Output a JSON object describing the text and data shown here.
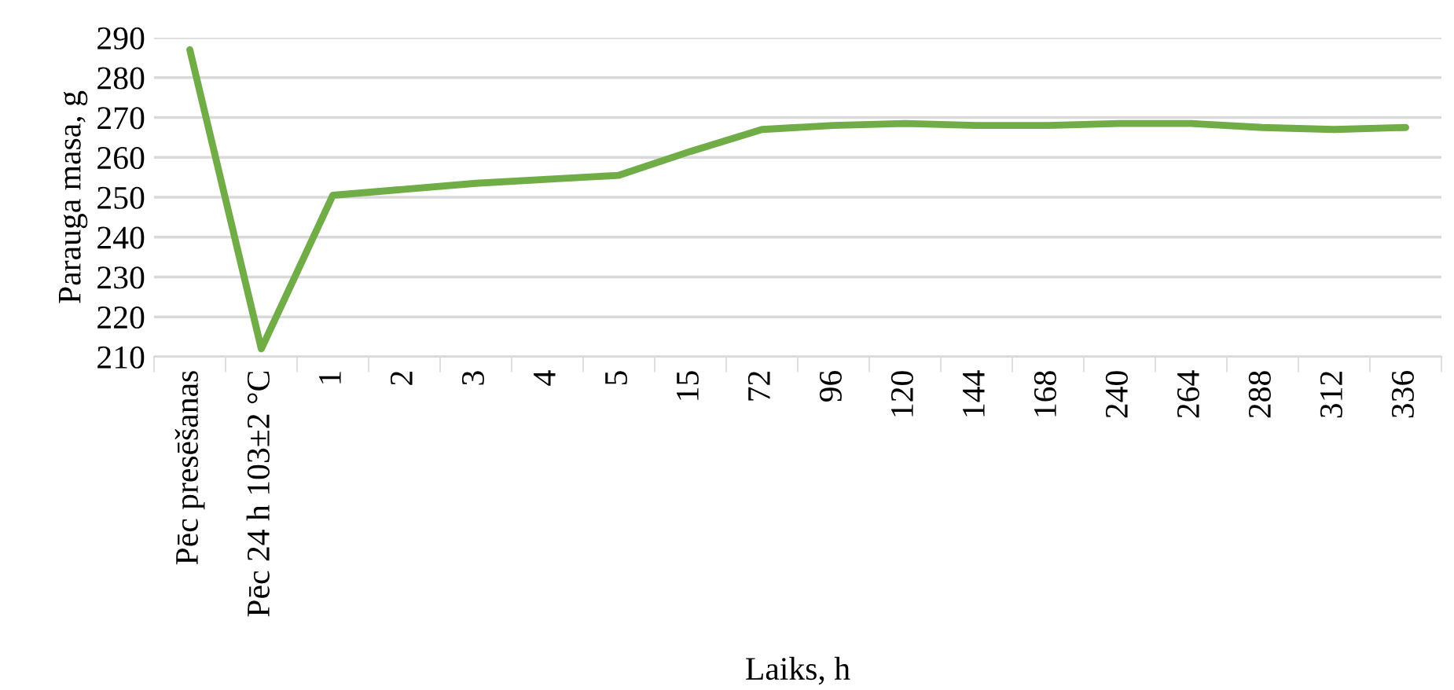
{
  "chart_data": {
    "type": "line",
    "xlabel": "Laiks, h",
    "ylabel": "Parauga masa, g",
    "categories": [
      "Pēc presēšanas",
      "Pēc 24 h 103±2 °C",
      "1",
      "2",
      "3",
      "4",
      "5",
      "15",
      "72",
      "96",
      "120",
      "144",
      "168",
      "240",
      "264",
      "288",
      "312",
      "336"
    ],
    "series": [
      {
        "color": "#70ad47",
        "values": [
          287,
          212,
          250.5,
          252,
          253.5,
          254.5,
          255.5,
          261.5,
          267,
          268,
          268.5,
          268,
          268,
          268.5,
          268.5,
          267.5,
          267,
          267.5
        ]
      }
    ],
    "ylim": [
      210,
      290
    ],
    "yticks": [
      210,
      220,
      230,
      240,
      250,
      260,
      270,
      280,
      290
    ],
    "grid": "y",
    "legend": false,
    "marker": "none",
    "line_style": "solid"
  }
}
